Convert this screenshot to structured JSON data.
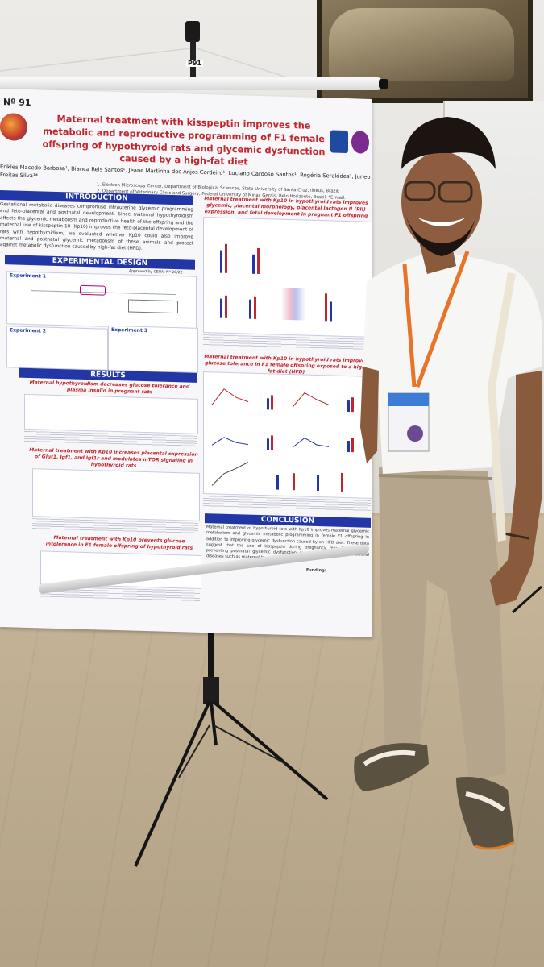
{
  "poster": {
    "number": "Nº 91",
    "board_label": "P91",
    "title": "Maternal treatment with kisspeptin improves the metabolic and reproductive programming of F1 female offspring of hypothyroid rats and glycemic dysfunction caused by a high-fat diet",
    "authors": "Erikles Macedo Barbosa¹, Bianca Reis Santos¹, Jeane Martinha dos Anjos Cordeiro¹, Luciano Cardoso Santos¹, Rogéria Serakides², Juneo Freitas Silva¹*",
    "affiliation_1": "1.  Electron Microscopy Center, Department of Biological Sciences, State University of Santa Cruz, Ilheus, Brazil;",
    "affiliation_2": "2. Department of Veterinary Clinic and Surgery, Federal University of Minas Gerais, Belo Horizonte, Brazil. *E-mail: jfsilva@uesc.br",
    "sections": {
      "introduction": "INTRODUCTION",
      "introduction_text": "Gestational metabolic diseases compromise intrauterine glycemic programming and feto-placental and postnatal development. Since maternal hypothyroidism affects the glycemic metabolism and reproductive health of the offspring and the maternal use of kisspeptin-10 (Kp10) improves the feto-placental development of rats with hypothyroidism, we evaluated whether Kp10 could also improve maternal and postnatal glycemic metabolism of these animals and protect against metabolic dysfunction caused by high-fat diet (HFD).",
      "experimental_design": "EXPERIMENTAL DESIGN",
      "approval": "Approved by CEUA: Nº 26/22",
      "experiment_1": "Experiment 1",
      "experiment_2": "Experiment 2",
      "experiment_3": "Experiment 3",
      "results": "RESULTS",
      "result_1": "Maternal hypothyroidism decreases glucose tolerance and plasma insulin in pregnant rats",
      "result_2": "Maternal treatment with Kp10 increases placental expression of Glut1, Igf1, and Igf1r and modulates mTOR signaling in hypothyroid rats",
      "result_3": "Maternal treatment with Kp10 prevents glucose intolerance in F1 female offspring of hypothyroid rats",
      "result_4": "Maternal treatment with Kp10 in hypothyroid rats improves glycemic, placental morphology, placental lactogen II (PII) expression, and fetal development in pregnant F1 offspring",
      "result_5": "Maternal treatment with Kp10 in hypothyroid rats improves glucose tolerance in F1 female offspring exposed to a high-fat diet (HFD)",
      "conclusion": "CONCLUSION",
      "conclusion_text": "Maternal treatment of hypothyroid rats with Kp10 improves maternal glycemic metabolism and glycemic metabolic programming in female F1 offspring in addition to improving glycemic dysfunction caused by an HFD diet. These data suggest that the use of kisspeptin during pregnancy may be useful in preventing postnatal glycemic dysfunction caused by metabolic gestational diseases such as maternal hypothyroidism.",
      "funding": "Funding:"
    }
  },
  "colors": {
    "title_red": "#c0262e",
    "section_blue": "#2236a5",
    "lanyard_orange": "#e8742a",
    "shirt_white": "#f6f6f4",
    "trousers_khaki": "#b4a58c"
  }
}
